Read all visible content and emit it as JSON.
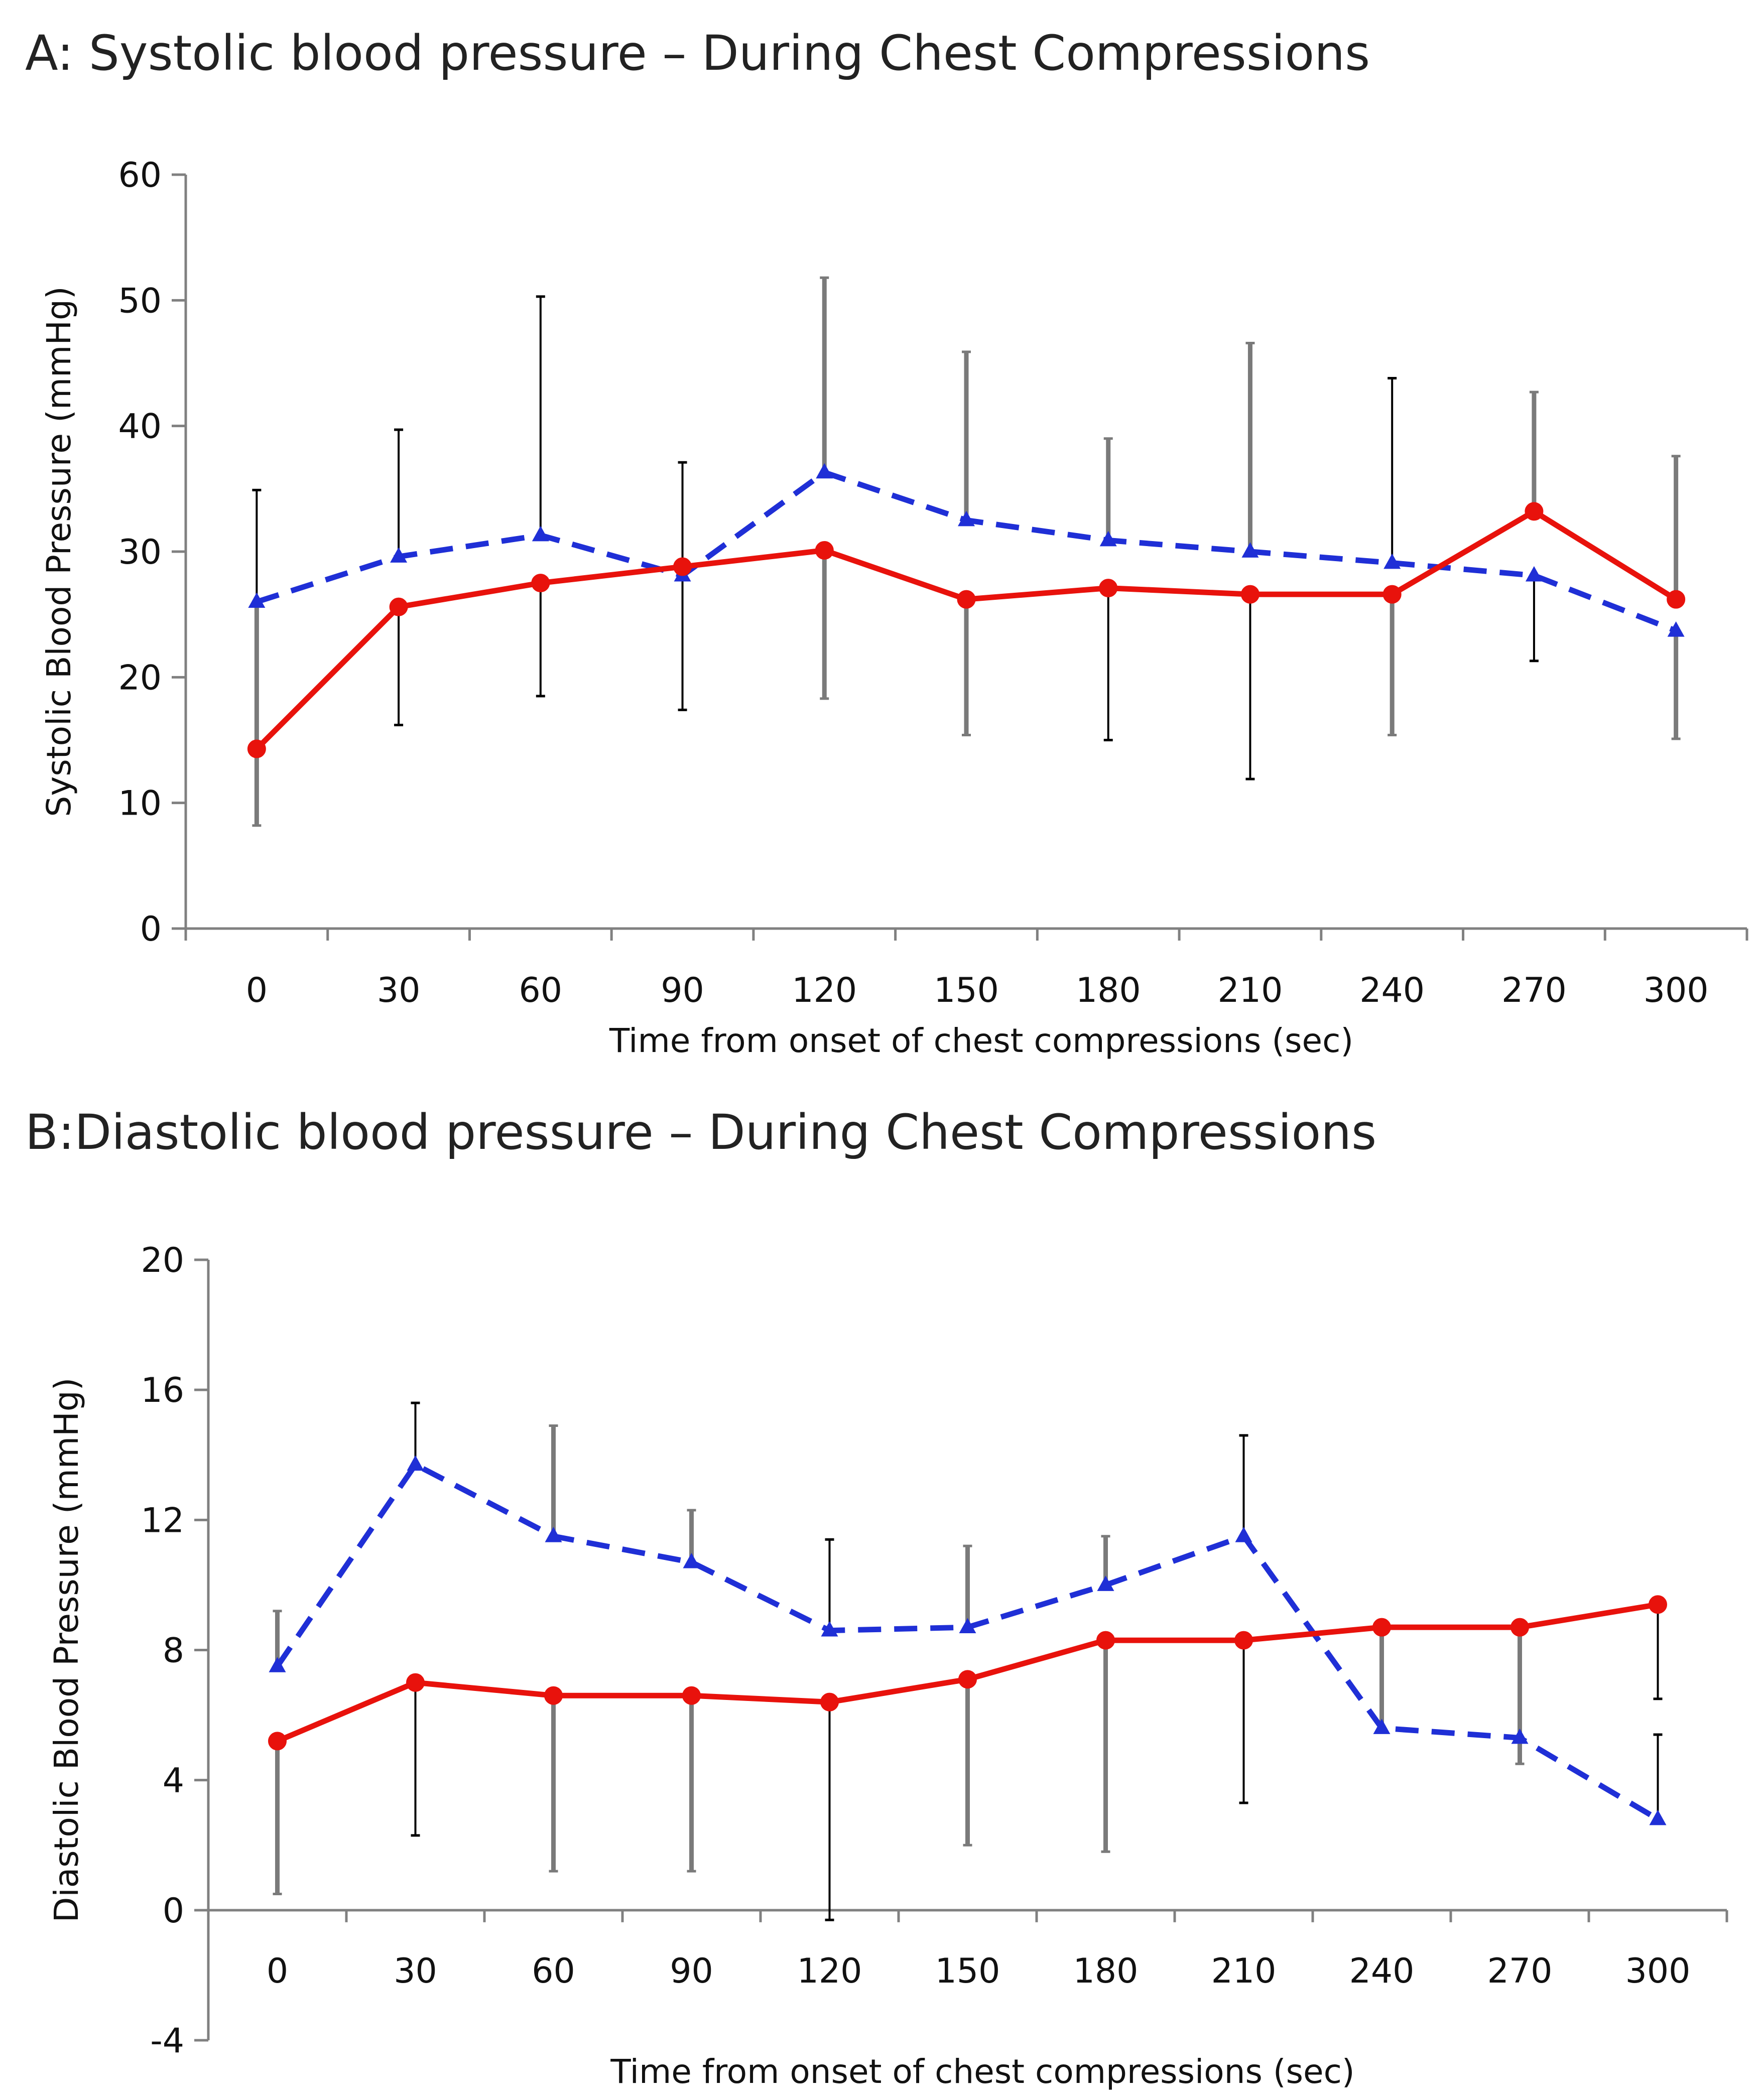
{
  "colors": {
    "seriesA": "#e8120c",
    "seriesB": "#1f2fd6",
    "errorDark": "#000000",
    "errorGrey": "#7a7a7a",
    "axis": "#808080"
  },
  "chart_data": [
    {
      "type": "line",
      "title": "A: Systolic blood pressure – During Chest Compressions",
      "xlabel": "Time from onset of chest compressions (sec)",
      "ylabel": "Systolic Blood Pressure (mmHg)",
      "categories": [
        "0",
        "30",
        "60",
        "90",
        "120",
        "150",
        "180",
        "210",
        "240",
        "270",
        "300"
      ],
      "ylim": [
        0,
        60
      ],
      "yticks": [
        "0",
        "10",
        "20",
        "30",
        "40",
        "50",
        "60"
      ],
      "legend": "none",
      "series": [
        {
          "name": "red-solid",
          "marker": "circle",
          "line": "solid",
          "values": [
            14.3,
            25.6,
            27.5,
            28.8,
            30.1,
            26.2,
            27.1,
            26.6,
            26.6,
            33.2,
            26.2
          ]
        },
        {
          "name": "blue-dashed",
          "marker": "triangle",
          "line": "dashed",
          "values": [
            26,
            29.6,
            31.3,
            28.1,
            36.3,
            32.5,
            30.9,
            30,
            29.1,
            28.1,
            23.7
          ]
        }
      ],
      "error_bars": [
        {
          "x": "0",
          "low": 8.2,
          "high": 26,
          "tone": "grey"
        },
        {
          "x": "0",
          "low": 26,
          "high": 34.9,
          "tone": "dark"
        },
        {
          "x": "30",
          "low": 16.2,
          "high": 25.6,
          "tone": "dark"
        },
        {
          "x": "30",
          "low": 29.6,
          "high": 39.7,
          "tone": "dark"
        },
        {
          "x": "60",
          "low": 18.5,
          "high": 27.5,
          "tone": "dark"
        },
        {
          "x": "60",
          "low": 31.3,
          "high": 50.3,
          "tone": "dark"
        },
        {
          "x": "90",
          "low": 17.4,
          "high": 28.1,
          "tone": "dark"
        },
        {
          "x": "90",
          "low": 28.8,
          "high": 37.1,
          "tone": "dark"
        },
        {
          "x": "120",
          "low": 18.3,
          "high": 30.1,
          "tone": "grey"
        },
        {
          "x": "120",
          "low": 36.3,
          "high": 51.8,
          "tone": "grey"
        },
        {
          "x": "150",
          "low": 15.4,
          "high": 26.2,
          "tone": "grey"
        },
        {
          "x": "150",
          "low": 32.5,
          "high": 45.9,
          "tone": "grey"
        },
        {
          "x": "180",
          "low": 15,
          "high": 27.1,
          "tone": "dark"
        },
        {
          "x": "180",
          "low": 30.9,
          "high": 39,
          "tone": "grey"
        },
        {
          "x": "210",
          "low": 11.9,
          "high": 26.6,
          "tone": "dark"
        },
        {
          "x": "210",
          "low": 30,
          "high": 46.6,
          "tone": "grey"
        },
        {
          "x": "240",
          "low": 15.4,
          "high": 26.6,
          "tone": "grey"
        },
        {
          "x": "240",
          "low": 29.1,
          "high": 43.8,
          "tone": "dark"
        },
        {
          "x": "270",
          "low": 21.3,
          "high": 28.1,
          "tone": "dark"
        },
        {
          "x": "270",
          "low": 33.2,
          "high": 42.7,
          "tone": "grey"
        },
        {
          "x": "300",
          "low": 15.1,
          "high": 23.7,
          "tone": "grey"
        },
        {
          "x": "300",
          "low": 26.2,
          "high": 37.6,
          "tone": "grey"
        }
      ]
    },
    {
      "type": "line",
      "title": "B:Diastolic blood pressure – During Chest Compressions",
      "xlabel": "Time from onset of chest compressions (sec)",
      "ylabel": "Diastolic Blood Pressure (mmHg)",
      "categories": [
        "0",
        "30",
        "60",
        "90",
        "120",
        "150",
        "180",
        "210",
        "240",
        "270",
        "300"
      ],
      "ylim": [
        -4,
        20
      ],
      "yticks": [
        "-4",
        "0",
        "4",
        "8",
        "12",
        "16",
        "20"
      ],
      "legend": "none",
      "series": [
        {
          "name": "red-solid",
          "marker": "circle",
          "line": "solid",
          "values": [
            5.2,
            7,
            6.6,
            6.6,
            6.4,
            7.1,
            8.3,
            8.3,
            8.7,
            8.7,
            9.4
          ]
        },
        {
          "name": "blue-dashed",
          "marker": "triangle",
          "line": "dashed",
          "values": [
            7.5,
            13.7,
            11.5,
            10.7,
            8.6,
            8.7,
            10,
            11.5,
            5.6,
            5.3,
            2.8
          ]
        }
      ],
      "error_bars": [
        {
          "x": "0",
          "low": 0.5,
          "high": 5.2,
          "tone": "grey"
        },
        {
          "x": "0",
          "low": 7.5,
          "high": 9.2,
          "tone": "grey"
        },
        {
          "x": "30",
          "low": 2.3,
          "high": 7,
          "tone": "dark"
        },
        {
          "x": "30",
          "low": 13.7,
          "high": 15.6,
          "tone": "dark"
        },
        {
          "x": "60",
          "low": 1.2,
          "high": 6.6,
          "tone": "grey"
        },
        {
          "x": "60",
          "low": 11.5,
          "high": 14.9,
          "tone": "grey"
        },
        {
          "x": "90",
          "low": 1.2,
          "high": 6.6,
          "tone": "grey"
        },
        {
          "x": "90",
          "low": 10.7,
          "high": 12.3,
          "tone": "grey"
        },
        {
          "x": "120",
          "low": -0.3,
          "high": 6.4,
          "tone": "dark"
        },
        {
          "x": "120",
          "low": 8.6,
          "high": 11.4,
          "tone": "dark"
        },
        {
          "x": "150",
          "low": 2,
          "high": 7.1,
          "tone": "grey"
        },
        {
          "x": "150",
          "low": 8.7,
          "high": 11.2,
          "tone": "grey"
        },
        {
          "x": "180",
          "low": 1.8,
          "high": 8.3,
          "tone": "grey"
        },
        {
          "x": "180",
          "low": 10,
          "high": 11.5,
          "tone": "grey"
        },
        {
          "x": "210",
          "low": 3.3,
          "high": 8.3,
          "tone": "dark"
        },
        {
          "x": "210",
          "low": 11.5,
          "high": 14.6,
          "tone": "dark"
        },
        {
          "x": "240",
          "low": 5.6,
          "high": 8.7,
          "tone": "grey"
        },
        {
          "x": "270",
          "low": 4.5,
          "high": 8.7,
          "tone": "grey"
        },
        {
          "x": "300",
          "low": 6.5,
          "high": 9.4,
          "tone": "dark"
        },
        {
          "x": "300",
          "low": 2.8,
          "high": 5.4,
          "tone": "dark"
        }
      ]
    }
  ]
}
